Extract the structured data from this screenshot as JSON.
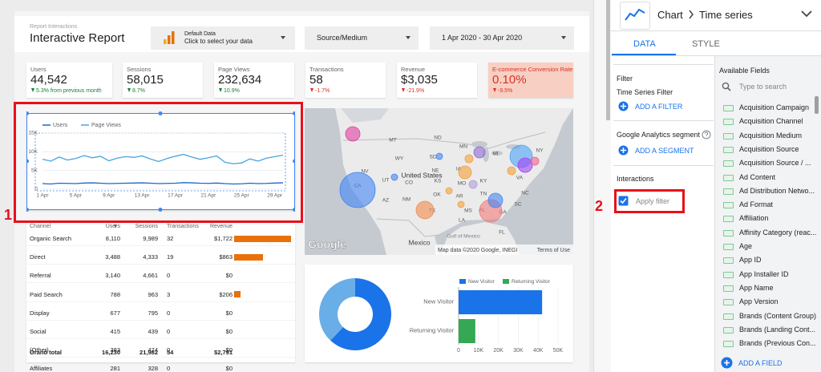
{
  "header": {
    "report_label": "Report Interactions",
    "title": "Interactive Report",
    "data_source": {
      "name": "Default Data",
      "hint": "Click to select your data"
    },
    "dimension_filter": "Source/Medium",
    "date_range": "1 Apr 2020 - 30 Apr 2020"
  },
  "scorecards": [
    {
      "label": "Users",
      "value": "44,542",
      "change": "5.3% from previous month",
      "color": "#188038"
    },
    {
      "label": "Sessions",
      "value": "58,015",
      "change": "8.7%",
      "color": "#188038"
    },
    {
      "label": "Page Views",
      "value": "232,634",
      "change": "10.9%",
      "color": "#188038"
    },
    {
      "label": "Transactions",
      "value": "58",
      "change": "-1.7%",
      "color": "#d93025"
    },
    {
      "label": "Revenue",
      "value": "$3,035",
      "change": "-21.9%",
      "color": "#d93025"
    },
    {
      "label": "E-commerce Conversion Rate",
      "value": "0.10%",
      "change": "-9.5%",
      "color": "#d93025",
      "background": "#f8cfc3"
    }
  ],
  "time_series": {
    "type": "line",
    "categories": [
      "1 Apr",
      null,
      null,
      null,
      "5 Apr",
      null,
      null,
      null,
      "9 Apr",
      null,
      null,
      null,
      "13 Apr",
      null,
      null,
      null,
      "17 Apr",
      null,
      null,
      null,
      "21 Apr",
      null,
      null,
      null,
      "25 Apr",
      null,
      null,
      null,
      "29 Apr",
      null
    ],
    "series": [
      {
        "name": "Users",
        "color": "#1967d2",
        "values": [
          1500,
          1400,
          1600,
          1550,
          1500,
          1650,
          1700,
          1600,
          1500,
          1550,
          1600,
          1650,
          1700,
          1600,
          1500,
          1550,
          1600,
          1750,
          1700,
          1600,
          1550,
          1650,
          1500,
          1400,
          1450,
          1600,
          1500,
          1550,
          1650,
          1700
        ]
      },
      {
        "name": "Page Views",
        "color": "#4aa3df",
        "values": [
          8000,
          7500,
          8600,
          7800,
          8200,
          9000,
          8400,
          8800,
          7600,
          8300,
          8700,
          8500,
          8900,
          8100,
          7400,
          8200,
          8800,
          9300,
          8600,
          8000,
          8400,
          8900,
          7200,
          6800,
          7000,
          8100,
          7500,
          8300,
          8700,
          9100
        ]
      }
    ],
    "ylim": [
      0,
      15000
    ],
    "yticks": [
      0,
      {
        "value": 5000,
        "label": "5K"
      },
      {
        "value": 10000,
        "label": "10K"
      },
      {
        "value": 15000,
        "label": "15K"
      }
    ]
  },
  "table": {
    "columns": [
      "Channel",
      "Users",
      "Sessions",
      "Transactions",
      "Revenue"
    ],
    "bar_color": "#e8710a",
    "rows": [
      [
        "Organic Search",
        "8,110",
        "9,989",
        "32",
        {
          "value": 1722,
          "label": "$1,722"
        }
      ],
      [
        "Direct",
        "3,488",
        "4,333",
        "19",
        {
          "value": 863,
          "label": "$863"
        }
      ],
      [
        "Referral",
        "3,140",
        "4,661",
        "0",
        {
          "value": 0,
          "label": "$0"
        }
      ],
      [
        "Paid Search",
        "788",
        "963",
        "3",
        {
          "value": 206,
          "label": "$206"
        }
      ],
      [
        "Display",
        "677",
        "795",
        "0",
        {
          "value": 0,
          "label": "$0"
        }
      ],
      [
        "Social",
        "415",
        "439",
        "0",
        {
          "value": 0,
          "label": "$0"
        }
      ],
      [
        "(Other)",
        "383",
        "474",
        "0",
        {
          "value": 0,
          "label": "$0"
        }
      ],
      [
        "Affiliates",
        "281",
        "328",
        "0",
        {
          "value": 0,
          "label": "$0"
        }
      ]
    ],
    "total": [
      "Grand total",
      "16,230",
      "21,982",
      "54",
      "$2,791"
    ]
  },
  "map": {
    "region_labels": [
      "MT",
      "ND",
      "MN",
      "SD",
      "WY",
      "NE",
      "IA",
      "MI",
      "NY",
      "NV",
      "UT",
      "CO",
      "KS",
      "MO",
      "KY",
      "VA",
      "CA",
      "AZ",
      "NM",
      "OK",
      "AR",
      "TN",
      "NC",
      "SC",
      "MS",
      "AL",
      "GA",
      "TX",
      "LA",
      "FL"
    ],
    "country_label": "United States",
    "neighbor_label": "Mexico",
    "water_label": "Gulf of Mexico",
    "logo": "Google",
    "attribution": "Map data ©2020 Google, INEGI",
    "terms": "Terms of Use"
  },
  "visitor_donut": {
    "type": "pie",
    "values": [
      62,
      38
    ],
    "colors": [
      "#1a73e8",
      "#6aaee8"
    ]
  },
  "visitor_bars": {
    "type": "bar",
    "categories": [
      "New Visitor",
      "Returning Visitor"
    ],
    "values": [
      42000,
      8400
    ],
    "colors": [
      "#1a73e8",
      "#34a853"
    ],
    "xlim": [
      0,
      50000
    ],
    "xticks": [
      0,
      {
        "value": 10000,
        "label": "10K"
      },
      {
        "value": 20000,
        "label": "20K"
      },
      {
        "value": 30000,
        "label": "30K"
      },
      {
        "value": 40000,
        "label": "40K"
      },
      {
        "value": 50000,
        "label": "50K"
      }
    ]
  },
  "editor": {
    "chart_group": "Chart",
    "chart_type": "Time series",
    "tabs": [
      "DATA",
      "STYLE"
    ],
    "filter_heading": "Filter",
    "time_series_filter": "Time Series Filter",
    "add_filter": "ADD A FILTER",
    "segment_heading": "Google Analytics segment",
    "add_segment": "ADD A SEGMENT",
    "interactions_heading": "Interactions",
    "apply_filter": "Apply filter",
    "available_fields": "Available Fields",
    "search_placeholder": "Type to search",
    "fields": [
      "Acquisition Campaign",
      "Acquisition Channel",
      "Acquisition Medium",
      "Acquisition Source",
      "Acquisition Source / ...",
      "Ad Content",
      "Ad Distribution Netwo...",
      "Ad Format",
      "Affiliation",
      "Affinity Category (reac...",
      "Age",
      "App ID",
      "App Installer ID",
      "App Name",
      "App Version",
      "Brands (Content Group)",
      "Brands (Landing Cont...",
      "Brands (Previous Con..."
    ],
    "add_field": "ADD A FIELD"
  },
  "annotations": [
    "1",
    "2"
  ]
}
